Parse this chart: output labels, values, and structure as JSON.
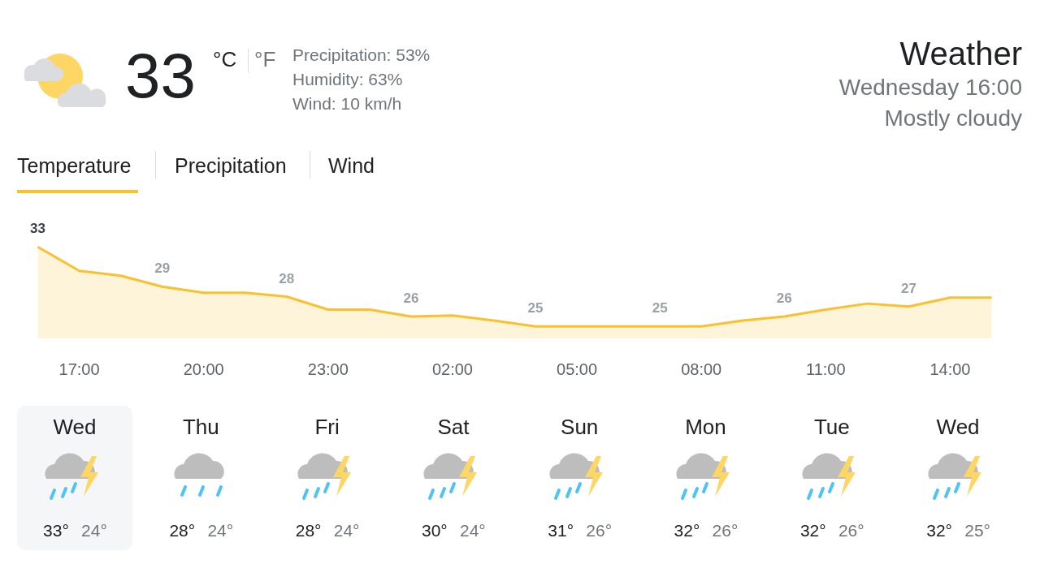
{
  "chart_data": [
    {
      "type": "other",
      "annotations": [
        "33",
        "°C",
        "°F",
        "Precipitation: 53%",
        "Humidity: 63%",
        "Wind: 10 km/h",
        "Weather",
        "Wednesday 16:00",
        "Mostly cloudy",
        "Temperature",
        "Precipitation",
        "Wind"
      ]
    },
    {
      "type": "area",
      "categories": [
        null,
        "17:00",
        null,
        null,
        "20:00",
        null,
        null,
        "23:00",
        null,
        null,
        "02:00",
        null,
        null,
        "05:00",
        null,
        null,
        "08:00",
        null,
        null,
        "11:00",
        null,
        null,
        "14:00",
        null
      ],
      "series": [
        {
          "color": "#fbc02d",
          "values": [
            33,
            30.6,
            30.1,
            29,
            28.4,
            28.4,
            28,
            26.7,
            26.7,
            26,
            26.1,
            25.6,
            25,
            25,
            25,
            25,
            25,
            25.6,
            26,
            26.7,
            27.3,
            27,
            27.9,
            27.9
          ],
          "value_labels": [
            "33",
            null,
            null,
            "29",
            null,
            null,
            "28",
            null,
            null,
            "26",
            null,
            null,
            "25",
            null,
            null,
            "25",
            null,
            null,
            "26",
            null,
            null,
            "27",
            null,
            null
          ]
        }
      ],
      "tick_labels": "x",
      "marker": "none"
    },
    {
      "type": "other",
      "categories": [
        "Wed",
        "Thu",
        "Fri",
        "Sat",
        "Sun",
        "Mon",
        "Tue",
        "Wed"
      ],
      "series": [
        {
          "values": [
            33,
            28,
            28,
            30,
            31,
            32,
            32,
            32
          ],
          "value_labels": [
            "33°",
            "28°",
            "28°",
            "30°",
            "31°",
            "32°",
            "32°",
            "32°"
          ]
        },
        {
          "values": [
            24,
            24,
            24,
            24,
            26,
            26,
            26,
            25
          ],
          "value_labels": [
            "24°",
            "24°",
            "24°",
            "24°",
            "26°",
            "26°",
            "26°",
            "25°"
          ]
        }
      ]
    }
  ]
}
